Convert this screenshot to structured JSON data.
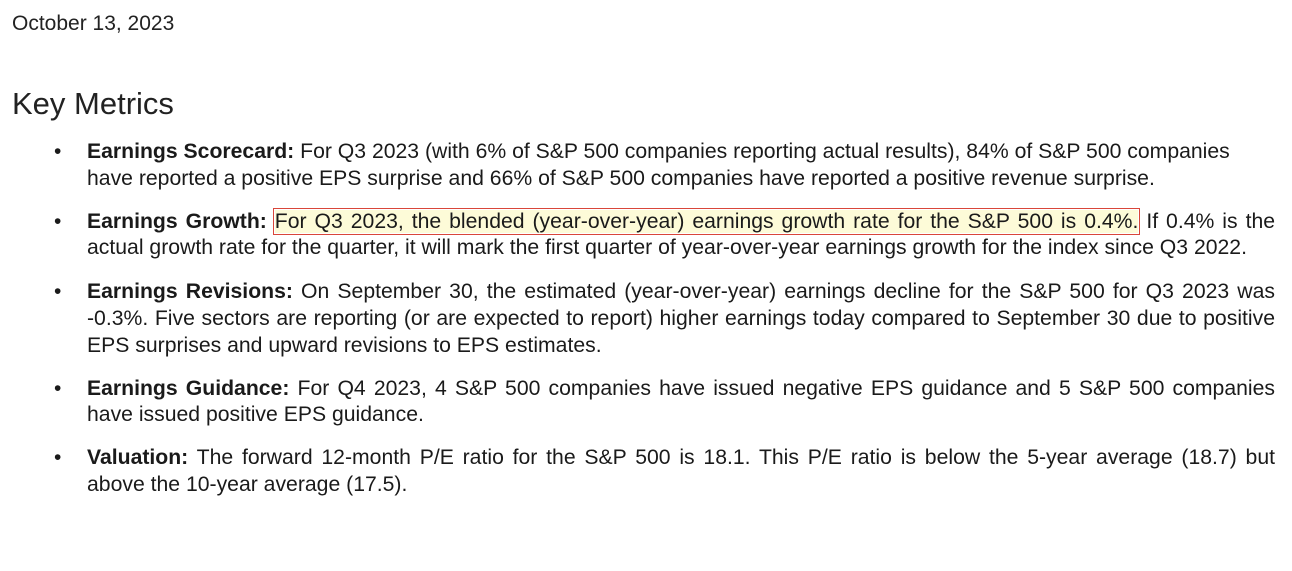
{
  "date": "October 13, 2023",
  "heading": "Key Metrics",
  "metrics": [
    {
      "label": "Earnings Scorecard:",
      "text": " For Q3 2023 (with 6% of S&P 500 companies reporting actual results), 84% of S&P 500 companies have reported a positive EPS surprise and 66% of S&P 500 companies have reported a positive revenue surprise."
    },
    {
      "label": "Earnings Growth:",
      "highlight": "For Q3 2023, the blended (year-over-year) earnings growth rate for the S&P 500 is 0.4%.",
      "text": " If 0.4% is the actual growth rate for the quarter, it will mark the first quarter of year-over-year earnings growth for the index since Q3 2022."
    },
    {
      "label": "Earnings Revisions:",
      "text": " On September 30, the estimated (year-over-year) earnings decline for the S&P 500 for Q3 2023 was -0.3%. Five sectors are reporting (or are expected to report) higher earnings today compared to September 30 due to positive EPS surprises and upward revisions to EPS estimates."
    },
    {
      "label": "Earnings Guidance:",
      "text": " For Q4 2023, 4 S&P 500 companies have issued negative EPS guidance and 5 S&P 500 companies have issued positive EPS guidance."
    },
    {
      "label": "Valuation:",
      "text": " The forward 12-month P/E ratio for the S&P 500 is 18.1. This P/E ratio is below the 5-year average (18.7) but above the 10-year average (17.5)."
    }
  ],
  "colors": {
    "highlight_background": "#fdfbd8",
    "highlight_border": "#d9463a",
    "text": "#1a1a1a"
  }
}
